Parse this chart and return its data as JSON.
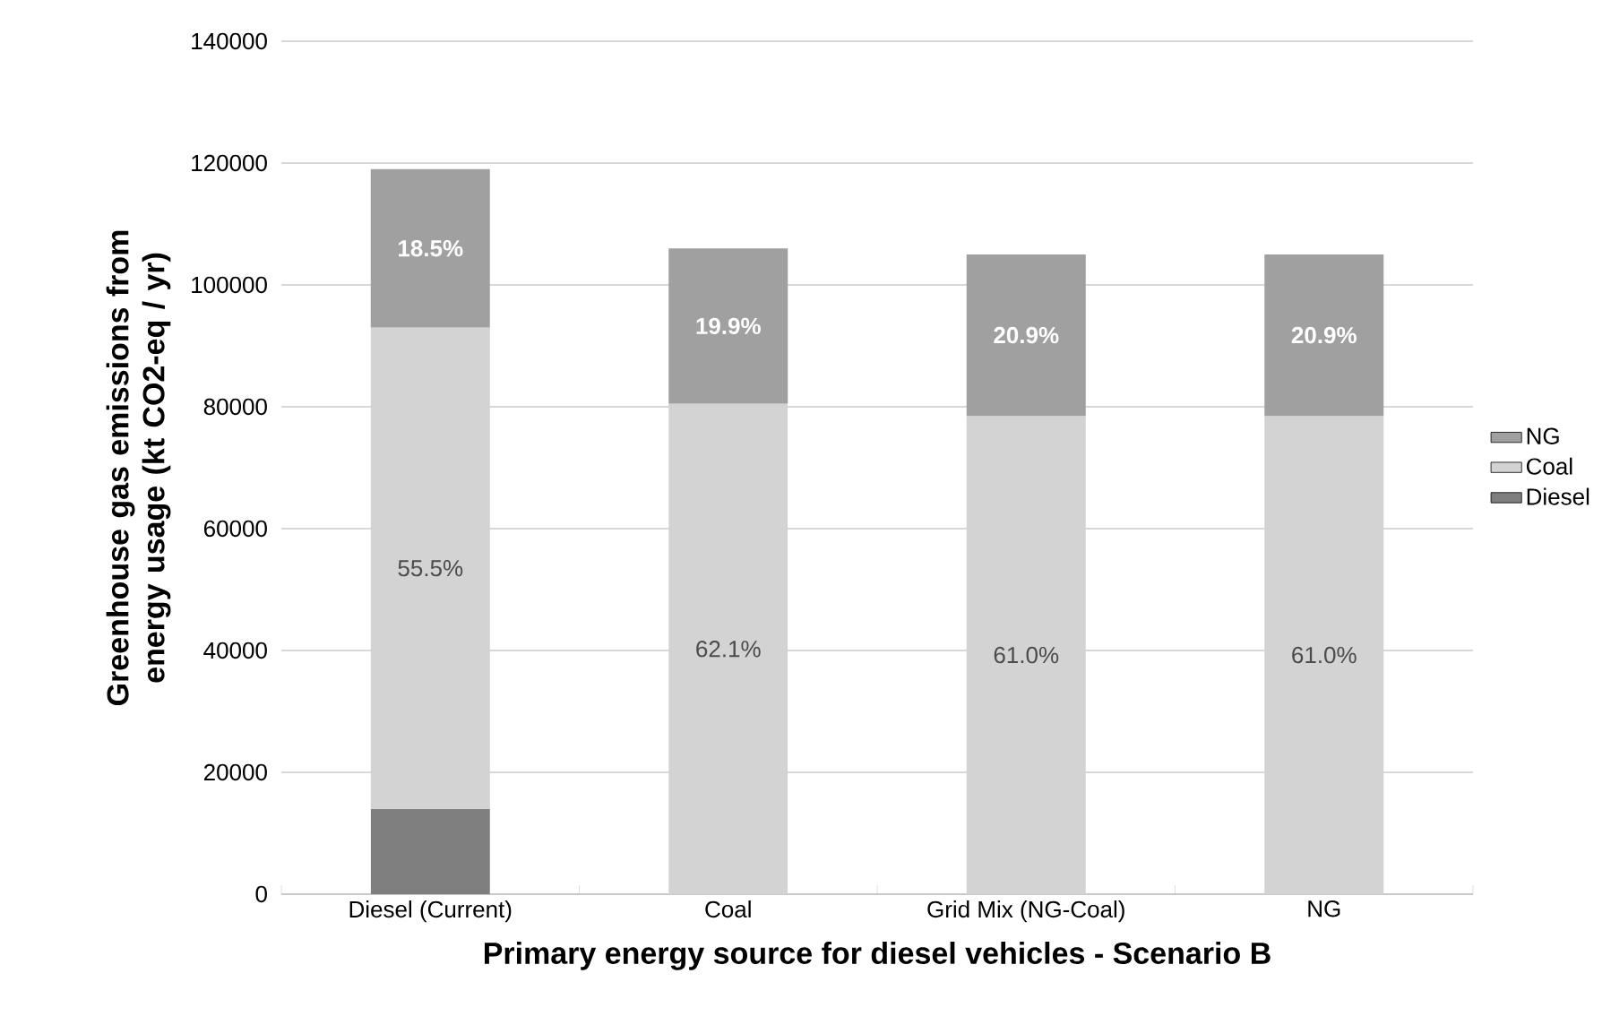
{
  "chart_data": {
    "type": "bar",
    "stacked": true,
    "xlabel": "Primary energy source for diesel  vehicles - Scenario B",
    "ylabel": "Greenhouse gas emissions from energy usage (kt CO2-eq / yr)",
    "categories": [
      "Diesel (Current)",
      "Coal",
      "Grid Mix (NG-Coal)",
      "NG"
    ],
    "series": [
      {
        "name": "Diesel",
        "color": "#7f7f7f",
        "values": [
          14000,
          null,
          null,
          null
        ]
      },
      {
        "name": "Coal",
        "color": "#d3d3d3",
        "values": [
          79000,
          80500,
          78500,
          78500
        ]
      },
      {
        "name": "NG",
        "color": "#a0a0a0",
        "values": [
          26000,
          25500,
          26500,
          26500
        ]
      }
    ],
    "annotations": [
      "55.5%",
      "62.1%",
      "61.0%",
      "61.0%",
      "18.5%",
      "19.9%",
      "20.9%",
      "20.9%"
    ],
    "ylim": [
      0,
      140000
    ],
    "yticks": [
      0,
      20000,
      40000,
      60000,
      80000,
      100000,
      120000,
      140000
    ],
    "grid": "y",
    "legend": "right"
  }
}
